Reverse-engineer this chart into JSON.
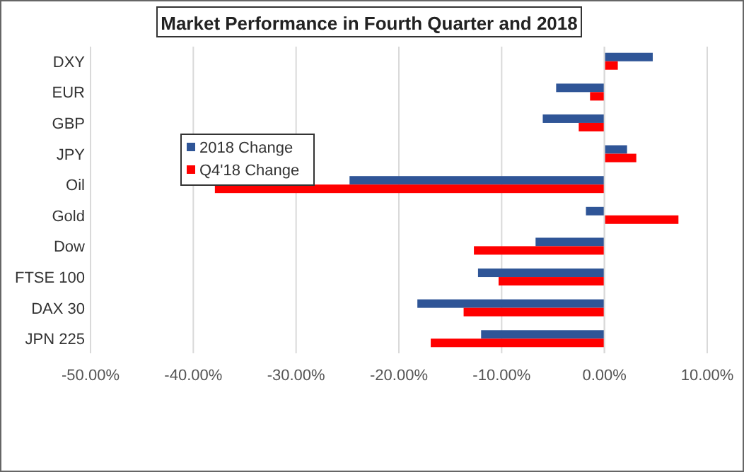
{
  "chart_data": {
    "type": "bar",
    "orientation": "horizontal",
    "title": "Market Performance in Fourth Quarter and 2018",
    "categories": [
      "DXY",
      "EUR",
      "GBP",
      "JPY",
      "Oil",
      "Gold",
      "Dow",
      "FTSE 100",
      "DAX 30",
      "JPN 225"
    ],
    "series": [
      {
        "name": "2018 Change",
        "color": "#2f5597",
        "values": [
          4.7,
          -4.7,
          -6.0,
          2.2,
          -24.8,
          -1.8,
          -6.7,
          -12.3,
          -18.2,
          -12.0
        ]
      },
      {
        "name": "Q4'18 Change",
        "color": "#ff0000",
        "values": [
          1.3,
          -1.4,
          -2.5,
          3.1,
          -37.9,
          7.2,
          -12.7,
          -10.3,
          -13.7,
          -16.9
        ]
      }
    ],
    "xlim": [
      -50,
      10
    ],
    "xticks": [
      {
        "value": -50,
        "label": "-50.00%"
      },
      {
        "value": -40,
        "label": "-40.00%"
      },
      {
        "value": -30,
        "label": "-30.00%"
      },
      {
        "value": -20,
        "label": "-20.00%"
      },
      {
        "value": -10,
        "label": "-10.00%"
      },
      {
        "value": 0,
        "label": "0.00%"
      },
      {
        "value": 10,
        "label": "10.00%"
      }
    ],
    "grid": "x",
    "legend": "left"
  }
}
